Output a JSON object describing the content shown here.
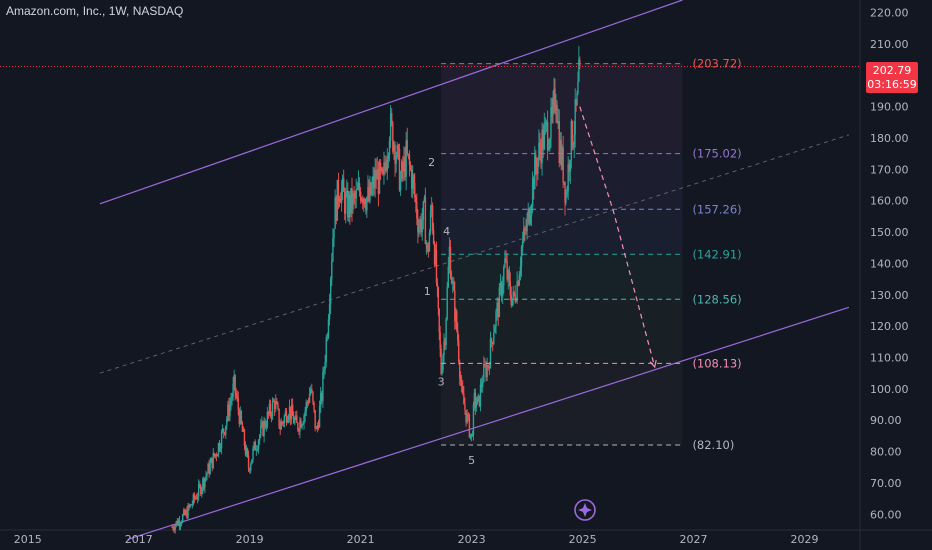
{
  "header": {
    "title": "Amazon.com, Inc., 1W, NASDAQ"
  },
  "last_price": {
    "value": "202.79",
    "countdown": "03:16:59",
    "color": "#f23645"
  },
  "chart_data": {
    "type": "candlestick",
    "symbol": "Amazon.com, Inc.",
    "interval": "1W",
    "exchange": "NASDAQ",
    "xlim": [
      2014.5,
      2030.0
    ],
    "ylim": [
      55,
      224
    ],
    "x_ticks": [
      "2015",
      "2017",
      "2019",
      "2021",
      "2023",
      "2025",
      "2027",
      "2029"
    ],
    "y_ticks": [
      "60.00",
      "70.00",
      "80.00",
      "90.00",
      "100.00",
      "110.00",
      "120.00",
      "130.00",
      "140.00",
      "150.00",
      "160.00",
      "170.00",
      "180.00",
      "190.00",
      "200.00",
      "210.00",
      "220.00"
    ],
    "colors": {
      "up": "#26a69a",
      "down": "#ef5350",
      "channel": "#9c6ade",
      "background": "#131722"
    },
    "price_path": [
      [
        2017.6,
        56
      ],
      [
        2017.85,
        60
      ],
      [
        2018.1,
        68
      ],
      [
        2018.4,
        80
      ],
      [
        2018.55,
        88
      ],
      [
        2018.72,
        101
      ],
      [
        2018.85,
        88
      ],
      [
        2018.98,
        75
      ],
      [
        2019.1,
        82
      ],
      [
        2019.3,
        90
      ],
      [
        2019.45,
        96
      ],
      [
        2019.55,
        88
      ],
      [
        2019.7,
        94
      ],
      [
        2019.85,
        88
      ],
      [
        2019.98,
        92
      ],
      [
        2020.1,
        100
      ],
      [
        2020.2,
        86
      ],
      [
        2020.3,
        98
      ],
      [
        2020.4,
        120
      ],
      [
        2020.52,
        155
      ],
      [
        2020.62,
        165
      ],
      [
        2020.75,
        158
      ],
      [
        2020.9,
        160
      ],
      [
        2021.0,
        164
      ],
      [
        2021.15,
        160
      ],
      [
        2021.28,
        168
      ],
      [
        2021.4,
        165
      ],
      [
        2021.52,
        184
      ],
      [
        2021.62,
        178
      ],
      [
        2021.72,
        166
      ],
      [
        2021.82,
        174
      ],
      [
        2021.92,
        168
      ],
      [
        2022.05,
        152
      ],
      [
        2022.15,
        156
      ],
      [
        2022.2,
        142
      ],
      [
        2022.28,
        158
      ],
      [
        2022.35,
        140
      ],
      [
        2022.4,
        122
      ],
      [
        2022.45,
        106
      ],
      [
        2022.52,
        118
      ],
      [
        2022.6,
        144
      ],
      [
        2022.68,
        128
      ],
      [
        2022.75,
        116
      ],
      [
        2022.82,
        98
      ],
      [
        2022.9,
        92
      ],
      [
        2023.0,
        84
      ],
      [
        2023.05,
        96
      ],
      [
        2023.12,
        95
      ],
      [
        2023.2,
        104
      ],
      [
        2023.3,
        108
      ],
      [
        2023.4,
        120
      ],
      [
        2023.5,
        128
      ],
      [
        2023.6,
        140
      ],
      [
        2023.68,
        132
      ],
      [
        2023.75,
        128
      ],
      [
        2023.82,
        134
      ],
      [
        2023.9,
        145
      ],
      [
        2024.0,
        152
      ],
      [
        2024.12,
        168
      ],
      [
        2024.25,
        178
      ],
      [
        2024.35,
        182
      ],
      [
        2024.45,
        184
      ],
      [
        2024.52,
        196
      ],
      [
        2024.58,
        178
      ],
      [
        2024.65,
        170
      ],
      [
        2024.7,
        162
      ],
      [
        2024.78,
        178
      ],
      [
        2024.85,
        184
      ],
      [
        2024.9,
        190
      ],
      [
        2024.95,
        202.79
      ]
    ],
    "channel": {
      "upper": [
        [
          2016.3,
          159
        ],
        [
          2026.8,
          224
        ]
      ],
      "middle": [
        [
          2016.3,
          105
        ],
        [
          2029.8,
          181
        ]
      ],
      "lower": [
        [
          2016.8,
          52
        ],
        [
          2029.8,
          126
        ]
      ]
    },
    "wave_labels": [
      {
        "text": "1",
        "x": 2022.2,
        "y": 130
      },
      {
        "text": "2",
        "x": 2022.28,
        "y": 171
      },
      {
        "text": "3",
        "x": 2022.45,
        "y": 101
      },
      {
        "text": "4",
        "x": 2022.55,
        "y": 149
      },
      {
        "text": "5",
        "x": 2023.0,
        "y": 76
      }
    ],
    "fib_levels": [
      {
        "label": "(203.72)",
        "value": 203.72,
        "color": "#ef5350"
      },
      {
        "label": "(175.02)",
        "value": 175.02,
        "color": "#9575cd"
      },
      {
        "label": "(157.26)",
        "value": 157.26,
        "color": "#7986cb"
      },
      {
        "label": "(142.91)",
        "value": 142.91,
        "color": "#26a69a"
      },
      {
        "label": "(128.56)",
        "value": 128.56,
        "color": "#4db6ac"
      },
      {
        "label": "(108.13)",
        "value": 108.13,
        "color": "#f48fb1"
      },
      {
        "label": "(82.10)",
        "value": 82.1,
        "color": "#b2b5be"
      }
    ],
    "fib_range_x": [
      2022.45,
      2026.8
    ],
    "projection": [
      [
        2024.95,
        190
      ],
      [
        2025.55,
        157
      ],
      [
        2026.3,
        107
      ]
    ]
  }
}
